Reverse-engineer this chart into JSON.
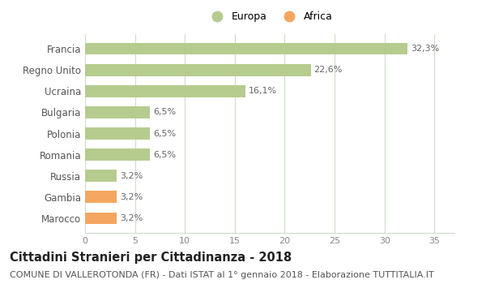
{
  "categories": [
    "Marocco",
    "Gambia",
    "Russia",
    "Romania",
    "Polonia",
    "Bulgaria",
    "Ucraina",
    "Regno Unito",
    "Francia"
  ],
  "values": [
    3.2,
    3.2,
    3.2,
    6.5,
    6.5,
    6.5,
    16.1,
    22.6,
    32.3
  ],
  "labels": [
    "3,2%",
    "3,2%",
    "3,2%",
    "6,5%",
    "6,5%",
    "6,5%",
    "16,1%",
    "22,6%",
    "32,3%"
  ],
  "colors": [
    "#f4a661",
    "#f4a661",
    "#b5cc8e",
    "#b5cc8e",
    "#b5cc8e",
    "#b5cc8e",
    "#b5cc8e",
    "#b5cc8e",
    "#b5cc8e"
  ],
  "legend_europa_color": "#b5cc8e",
  "legend_africa_color": "#f4a661",
  "europa_label": "Europa",
  "africa_label": "Africa",
  "xlim": [
    0,
    37
  ],
  "xticks": [
    0,
    5,
    10,
    15,
    20,
    25,
    30,
    35
  ],
  "title": "Cittadini Stranieri per Cittadinanza - 2018",
  "subtitle": "COMUNE DI VALLEROTONDA (FR) - Dati ISTAT al 1° gennaio 2018 - Elaborazione TUTTITALIA.IT",
  "title_fontsize": 10.5,
  "subtitle_fontsize": 8,
  "background_color": "#ffffff",
  "grid_color": "#ccddcc",
  "bar_label_fontsize": 8,
  "ytick_fontsize": 8.5,
  "xtick_fontsize": 8
}
